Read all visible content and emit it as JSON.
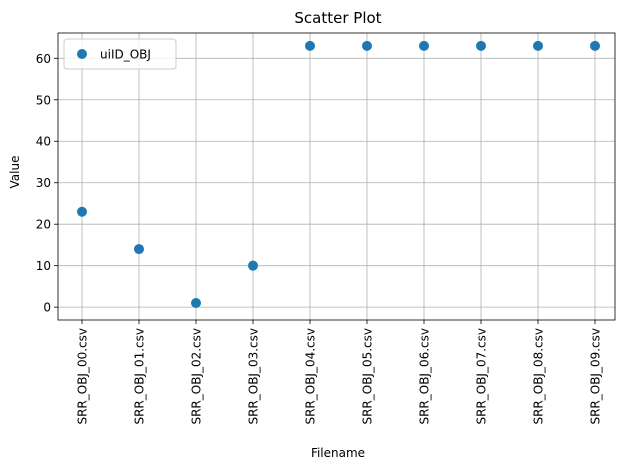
{
  "chart_data": {
    "type": "scatter",
    "title": "Scatter Plot",
    "xlabel": "Filename",
    "ylabel": "Value",
    "categories": [
      "SRR_OBJ_00.csv",
      "SRR_OBJ_01.csv",
      "SRR_OBJ_02.csv",
      "SRR_OBJ_03.csv",
      "SRR_OBJ_04.csv",
      "SRR_OBJ_05.csv",
      "SRR_OBJ_06.csv",
      "SRR_OBJ_07.csv",
      "SRR_OBJ_08.csv",
      "SRR_OBJ_09.csv"
    ],
    "series": [
      {
        "name": "uiID_OBJ",
        "color": "#1f77b4",
        "values": [
          23,
          14,
          1,
          10,
          63,
          63,
          63,
          63,
          63,
          63
        ]
      }
    ],
    "ylim": [
      -3.1,
      66.1
    ],
    "yticks": [
      0,
      10,
      20,
      30,
      40,
      50,
      60
    ],
    "grid": true,
    "legend_position": "upper-left"
  }
}
